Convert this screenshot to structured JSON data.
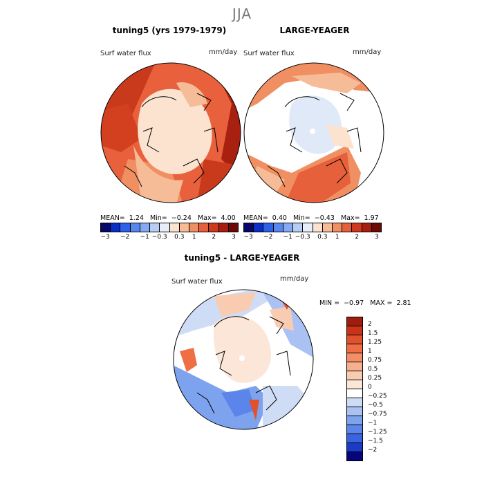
{
  "season": "JJA",
  "palette": [
    "#08086b",
    "#0b2fc4",
    "#2c61e8",
    "#5786ef",
    "#86aaf2",
    "#b7cdf3",
    "#e7eef9",
    "#fbe3d0",
    "#f6bc98",
    "#f08f62",
    "#e6603b",
    "#cf3a1d",
    "#a71f0f",
    "#6e0a05"
  ],
  "panel_left": {
    "title": "tuning5 (yrs 1979-1979)",
    "variable": "Surf water flux",
    "units": "mm/day",
    "mean_label": "MEAN=",
    "mean": "1.24",
    "min_label": "Min=",
    "min": "−0.24",
    "max_label": "Max=",
    "max": "4.00",
    "ticks": [
      "−3",
      "−2",
      "−1",
      "−0.3",
      "0.3",
      "1",
      "2",
      "3"
    ]
  },
  "panel_right": {
    "title": "LARGE-YEAGER",
    "variable": "Surf water flux",
    "units": "mm/day",
    "mean_label": "MEAN=",
    "mean": "0.40",
    "min_label": "Min=",
    "min": "−0.43",
    "max_label": "Max=",
    "max": "1.97",
    "ticks": [
      "−3",
      "−2",
      "−1",
      "−0.3",
      "0.3",
      "1",
      "2",
      "3"
    ]
  },
  "panel_diff": {
    "title": "tuning5 - LARGE-YEAGER",
    "variable": "Surf water flux",
    "units": "mm/day",
    "min_label": "MIN =",
    "min": "−0.97",
    "max_label": "MAX =",
    "max": "2.81",
    "levels": [
      "2",
      "1.5",
      "1.25",
      "1",
      "0.75",
      "0.5",
      "0.25",
      "0",
      "−0.25",
      "−0.5",
      "−0.75",
      "−1",
      "−1.25",
      "−1.5",
      "−2"
    ],
    "colors": [
      "#a01c0e",
      "#c9331a",
      "#e0522d",
      "#ef6e43",
      "#f48e66",
      "#f6b08f",
      "#f9ccb2",
      "#fbe6d8",
      "#ffffff",
      "#cfdcf6",
      "#a9c1f3",
      "#7ea3ee",
      "#5b85ea",
      "#3a63df",
      "#1c3ac8",
      "#06067a"
    ]
  }
}
